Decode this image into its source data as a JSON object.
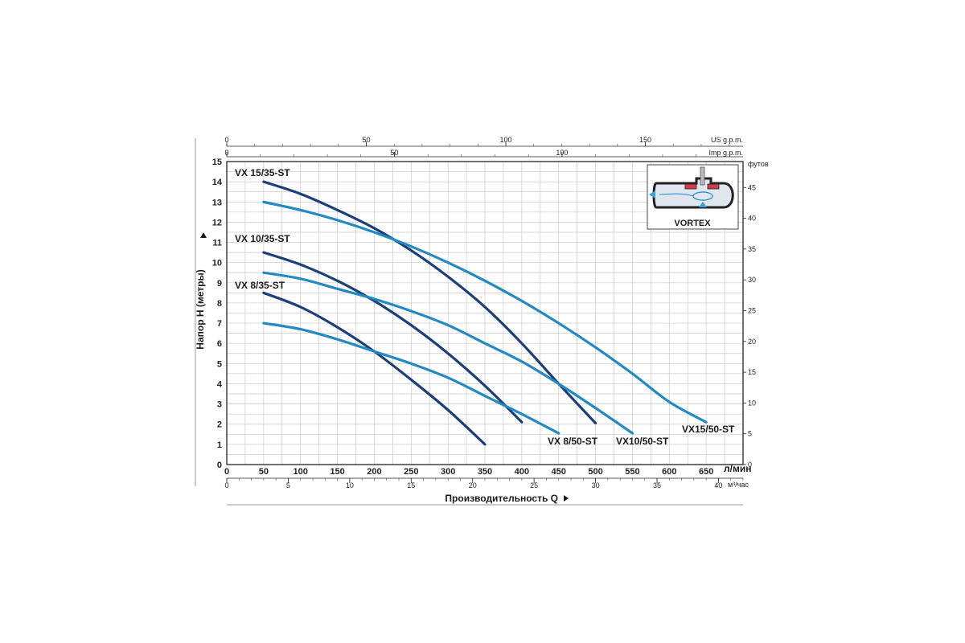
{
  "chart_data": {
    "type": "line",
    "xlabel": "Производительность Q",
    "ylabel": "Напор H (метры)",
    "x_unit": "л/мин",
    "xlim": [
      0,
      700
    ],
    "ylim": [
      0,
      15
    ],
    "x_ticks": [
      0,
      50,
      100,
      150,
      200,
      250,
      300,
      350,
      400,
      450,
      500,
      550,
      600,
      650
    ],
    "y_ticks": [
      0,
      1,
      2,
      3,
      4,
      5,
      6,
      7,
      8,
      9,
      10,
      11,
      12,
      13,
      14,
      15
    ],
    "grid": true,
    "secondary_axes": {
      "top1": {
        "unit": "US g.p.m.",
        "ticks": [
          0,
          50,
          100,
          150
        ],
        "max": 185
      },
      "top2": {
        "unit": "Imp g.p.m.",
        "ticks": [
          0,
          50,
          100
        ],
        "max": 154
      },
      "right": {
        "unit": "футов",
        "ticks": [
          0,
          5,
          10,
          15,
          20,
          25,
          30,
          35,
          40,
          45
        ]
      },
      "bottom2": {
        "unit": "м³/час",
        "ticks": [
          0,
          5,
          10,
          15,
          20,
          25,
          30,
          35,
          40
        ],
        "max": 42
      }
    },
    "series": [
      {
        "name": "VX 15/35-ST",
        "color": "#1b3f78",
        "x": [
          50,
          100,
          150,
          200,
          250,
          300,
          350,
          400,
          450,
          500
        ],
        "y": [
          14.0,
          13.4,
          12.6,
          11.7,
          10.6,
          9.3,
          7.8,
          6.0,
          4.0,
          2.05
        ]
      },
      {
        "name": "VX 10/35-ST",
        "color": "#1b3f78",
        "x": [
          50,
          100,
          150,
          200,
          250,
          300,
          350,
          400
        ],
        "y": [
          10.5,
          9.9,
          9.1,
          8.1,
          6.9,
          5.5,
          3.9,
          2.1
        ]
      },
      {
        "name": "VX 8/35-ST",
        "color": "#1b3f78",
        "x": [
          50,
          100,
          150,
          200,
          250,
          300,
          350
        ],
        "y": [
          8.5,
          7.8,
          6.8,
          5.6,
          4.2,
          2.7,
          1.0
        ]
      },
      {
        "name": "VX15/50-ST",
        "color": "#2389c2",
        "x": [
          50,
          100,
          150,
          200,
          250,
          300,
          350,
          400,
          450,
          500,
          550,
          600,
          650
        ],
        "y": [
          13.0,
          12.6,
          12.1,
          11.5,
          10.8,
          10.0,
          9.1,
          8.1,
          7.0,
          5.8,
          4.5,
          3.1,
          2.1
        ]
      },
      {
        "name": "VX10/50-ST",
        "color": "#2389c2",
        "x": [
          50,
          100,
          150,
          200,
          250,
          300,
          350,
          400,
          450,
          500,
          550
        ],
        "y": [
          9.5,
          9.2,
          8.7,
          8.2,
          7.6,
          6.9,
          6.0,
          5.1,
          4.0,
          2.8,
          1.55
        ]
      },
      {
        "name": "VX 8/50-ST",
        "color": "#2389c2",
        "x": [
          50,
          100,
          150,
          200,
          250,
          300,
          350,
          400,
          450
        ],
        "y": [
          7.0,
          6.7,
          6.2,
          5.6,
          5.0,
          4.3,
          3.4,
          2.5,
          1.55
        ]
      }
    ],
    "inset_label": "VORTEX"
  }
}
